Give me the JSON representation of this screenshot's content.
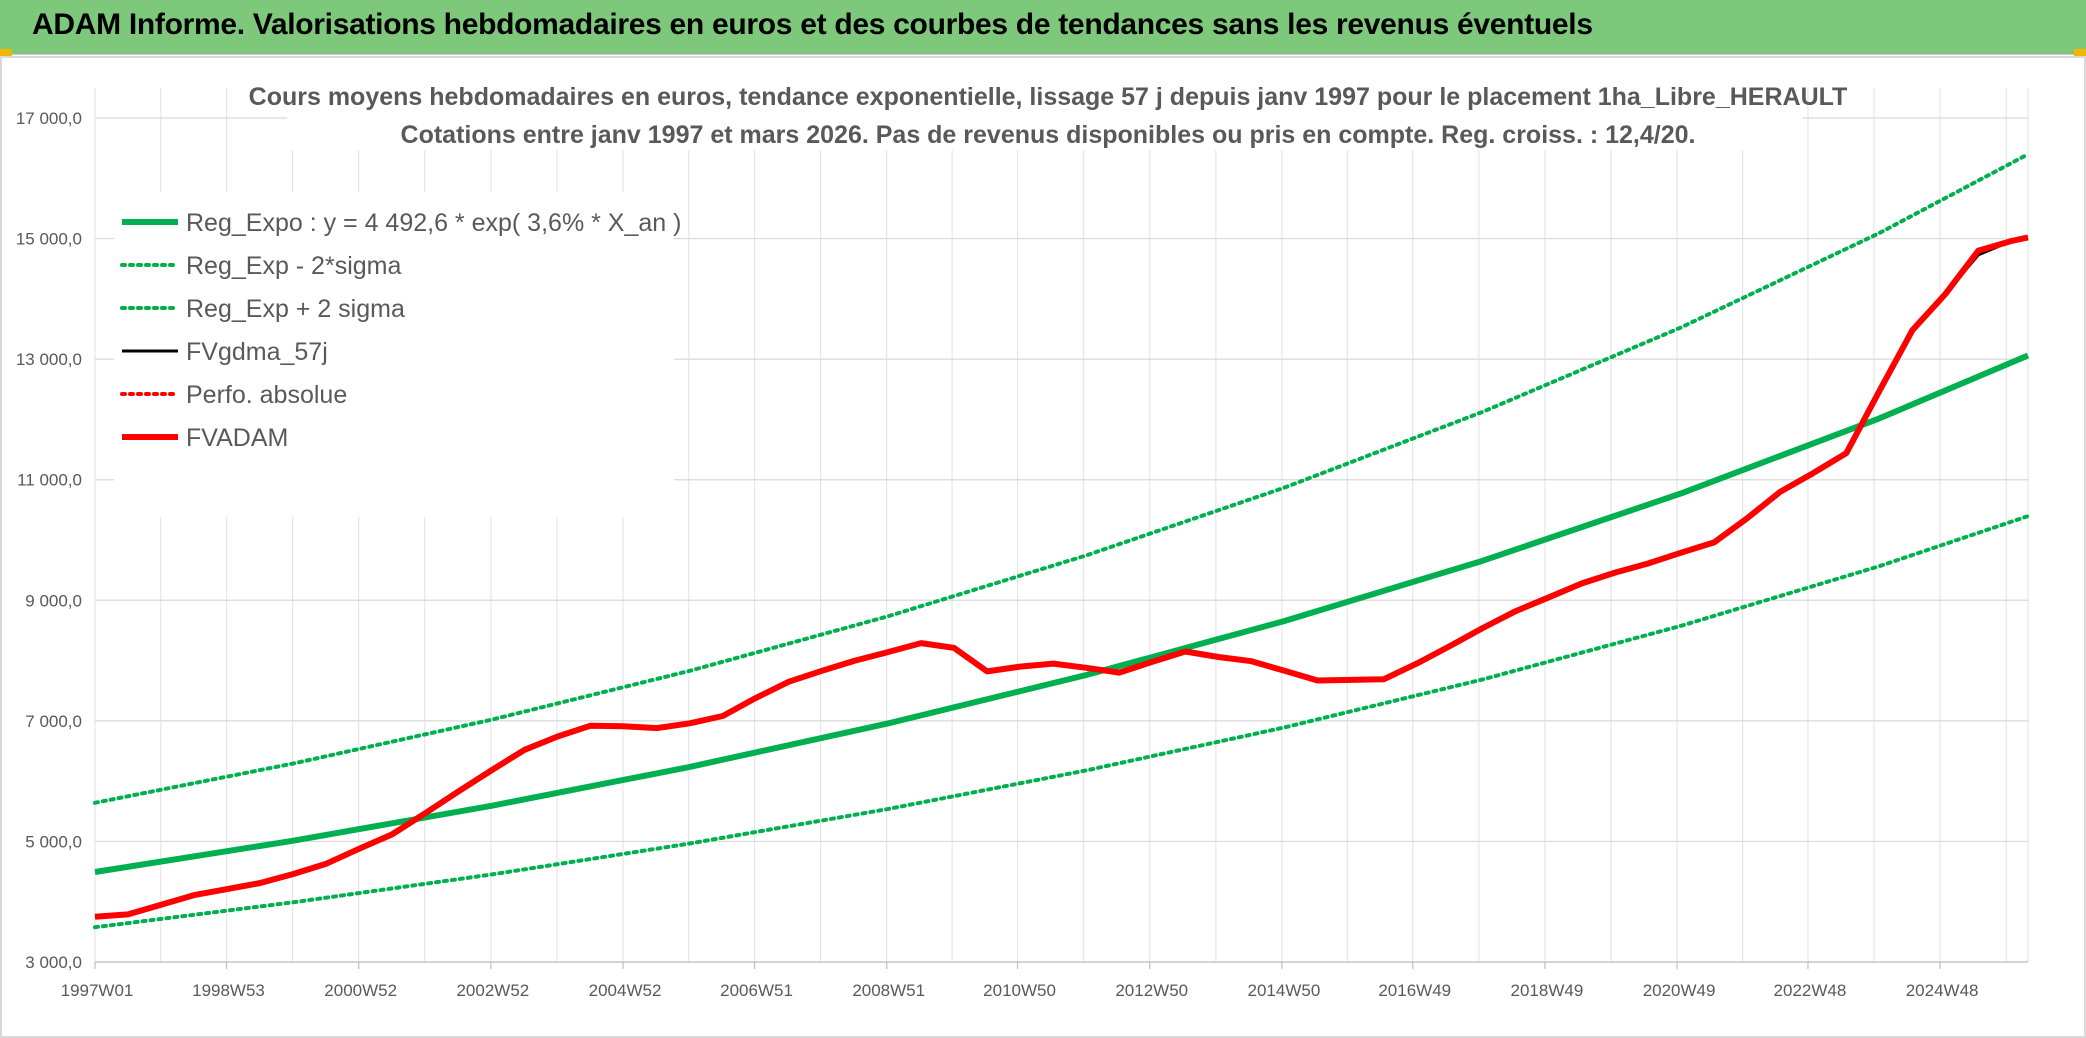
{
  "banner": {
    "title": "ADAM Informe. Valorisations hebdomadaires en euros et des courbes de tendances sans les revenus éventuels",
    "background": "#7dc87b",
    "accent": "#f1b700"
  },
  "chart_data": {
    "type": "line",
    "title": [
      "Cours moyens hebdomadaires en euros, tendance exponentielle, lissage 57 j depuis janv 1997 pour le placement 1ha_Libre_HERAULT",
      "Cotations entre janv 1997 et mars 2026. Pas de revenus disponibles ou pris en compte. Reg. croiss. : 12,4/20."
    ],
    "xlabel": "",
    "ylabel": "",
    "ylim": [
      3000,
      17000
    ],
    "y_ticks": [
      3000,
      5000,
      7000,
      9000,
      11000,
      13000,
      15000,
      17000
    ],
    "y_tick_labels": [
      "3 000,0",
      "5 000,0",
      "7 000,0",
      "9 000,0",
      "11 000,0",
      "13 000,0",
      "15 000,0",
      "17 000,0"
    ],
    "xlim": [
      1997.0,
      2026.25
    ],
    "x_ticks": [
      1997.0,
      1998.99,
      2000.99,
      2002.99,
      2004.99,
      2006.98,
      2008.98,
      2010.96,
      2012.96,
      2014.96,
      2016.94,
      2018.94,
      2020.94,
      2022.92,
      2024.92
    ],
    "x_tick_labels": [
      "1997W01",
      "1998W53",
      "2000W52",
      "2002W52",
      "2004W52",
      "2006W51",
      "2008W51",
      "2010W50",
      "2012W50",
      "2014W50",
      "2016W49",
      "2018W49",
      "2020W49",
      "2022W48",
      "2024W48"
    ],
    "grid": true,
    "legend_position": "top-left",
    "series": [
      {
        "name": "Reg_Expo : y = 4 492,6 * exp( 3,6% *  X_an )",
        "color": "#00b050",
        "style": "solid-thick",
        "x": [
          1997,
          2000,
          2003,
          2006,
          2009,
          2012,
          2015,
          2018,
          2021,
          2024,
          2026.25
        ],
        "values": [
          4493,
          5012,
          5591,
          6237,
          6957,
          7761,
          8657,
          9657,
          10773,
          12017,
          13060
        ]
      },
      {
        "name": "Reg_Exp - 2*sigma",
        "color": "#00b050",
        "style": "dotted",
        "x": [
          1997,
          2000,
          2003,
          2006,
          2009,
          2012,
          2015,
          2018,
          2021,
          2024,
          2026.25
        ],
        "values": [
          3577,
          3990,
          4451,
          4965,
          5538,
          6178,
          6892,
          7688,
          8576,
          9566,
          10397
        ]
      },
      {
        "name": "Reg_Exp + 2 sigma",
        "color": "#00b050",
        "style": "dotted",
        "x": [
          1997,
          2000,
          2003,
          2006,
          2009,
          2012,
          2015,
          2018,
          2021,
          2024,
          2026.25
        ],
        "values": [
          5641,
          6293,
          7020,
          7831,
          8735,
          9745,
          10870,
          12126,
          13527,
          15090,
          16399
        ]
      },
      {
        "name": "FVgdma_57j",
        "color": "#000000",
        "style": "solid",
        "x": [
          1997,
          1997.5,
          1998,
          1998.5,
          1999,
          1999.5,
          2000,
          2000.5,
          2001,
          2001.5,
          2002,
          2002.5,
          2003,
          2003.5,
          2004,
          2004.5,
          2005,
          2005.5,
          2006,
          2006.5,
          2007,
          2007.5,
          2008,
          2008.5,
          2009,
          2009.5,
          2010,
          2010.5,
          2011,
          2011.5,
          2012,
          2012.5,
          2013,
          2013.5,
          2014,
          2014.5,
          2015,
          2015.5,
          2016,
          2016.5,
          2017,
          2017.5,
          2018,
          2018.5,
          2019,
          2019.5,
          2020,
          2020.5,
          2021,
          2021.5,
          2022,
          2022.5,
          2023,
          2023.5,
          2024,
          2024.5,
          2025,
          2025.5,
          2026,
          2026.25
        ],
        "values": [
          3750,
          3790,
          3950,
          4110,
          4210,
          4310,
          4460,
          4630,
          4880,
          5120,
          5470,
          5830,
          6180,
          6520,
          6740,
          6920,
          6910,
          6880,
          6960,
          7080,
          7380,
          7650,
          7830,
          8000,
          8140,
          8270,
          8210,
          7820,
          7900,
          7950,
          7880,
          7800,
          7980,
          8150,
          8060,
          7990,
          7830,
          7670,
          7680,
          7690,
          7950,
          8240,
          8540,
          8820,
          9050,
          9280,
          9460,
          9610,
          9790,
          9960,
          10360,
          10800,
          11110,
          11440,
          12470,
          13480,
          14080,
          14730,
          14960,
          15020
        ]
      },
      {
        "name": "Perfo. absolue",
        "color": "#ff0000",
        "style": "dotted",
        "x": [],
        "values": []
      },
      {
        "name": "FVADAM",
        "color": "#ff0000",
        "style": "solid-thick",
        "x": [
          1997,
          1997.5,
          1998,
          1998.5,
          1999,
          1999.5,
          2000,
          2000.5,
          2001,
          2001.5,
          2002,
          2002.5,
          2003,
          2003.5,
          2004,
          2004.5,
          2005,
          2005.5,
          2006,
          2006.5,
          2007,
          2007.5,
          2008,
          2008.5,
          2009,
          2009.5,
          2010,
          2010.5,
          2011,
          2011.5,
          2012,
          2012.5,
          2013,
          2013.5,
          2014,
          2014.5,
          2015,
          2015.5,
          2016,
          2016.5,
          2017,
          2017.5,
          2018,
          2018.5,
          2019,
          2019.5,
          2020,
          2020.5,
          2021,
          2021.5,
          2022,
          2022.5,
          2023,
          2023.5,
          2024,
          2024.5,
          2025,
          2025.5,
          2026,
          2026.25
        ],
        "values": [
          3750,
          3790,
          3950,
          4110,
          4210,
          4310,
          4460,
          4630,
          4880,
          5120,
          5470,
          5830,
          6180,
          6520,
          6740,
          6920,
          6910,
          6880,
          6960,
          7080,
          7380,
          7650,
          7830,
          8000,
          8140,
          8290,
          8210,
          7820,
          7900,
          7950,
          7880,
          7800,
          7980,
          8150,
          8060,
          7990,
          7830,
          7670,
          7680,
          7690,
          7950,
          8240,
          8540,
          8820,
          9050,
          9280,
          9460,
          9610,
          9790,
          9960,
          10360,
          10800,
          11110,
          11440,
          12470,
          13480,
          14080,
          14800,
          14960,
          15020
        ]
      }
    ]
  }
}
